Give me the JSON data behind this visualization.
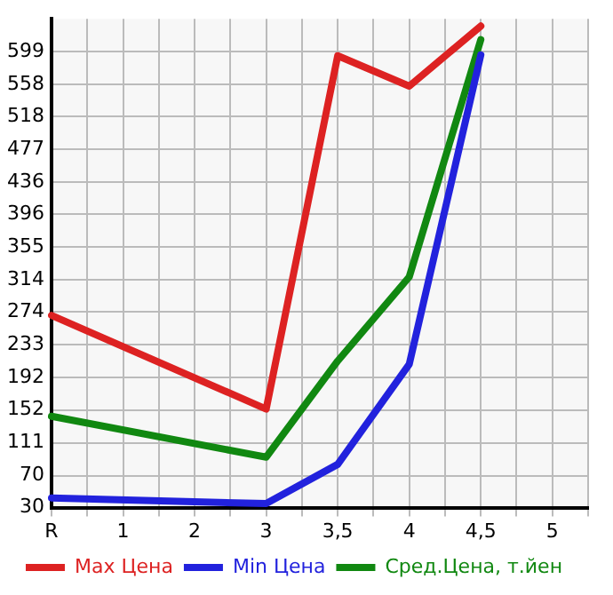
{
  "chart_data": {
    "type": "line",
    "categories": [
      "R",
      null,
      "1",
      null,
      "2",
      null,
      "3",
      null,
      "3,5",
      null,
      "4",
      null,
      "4,5",
      null,
      "5",
      null
    ],
    "series": [
      {
        "name": "Max Цена",
        "color": "#dd2222",
        "values": [
          270,
          null,
          null,
          null,
          null,
          null,
          153,
          null,
          594,
          null,
          556,
          null,
          631,
          null,
          null,
          null
        ]
      },
      {
        "name": "Min Цена",
        "color": "#2222dd",
        "values": [
          42,
          null,
          null,
          null,
          null,
          null,
          35,
          null,
          84,
          null,
          209,
          null,
          595,
          null,
          null,
          null
        ]
      },
      {
        "name": "Сред.Цена, т.йен",
        "color": "#118811",
        "values": [
          144,
          null,
          null,
          null,
          null,
          null,
          93,
          null,
          213,
          null,
          318,
          null,
          614,
          null,
          null,
          null
        ]
      }
    ],
    "ylim": [
      30,
      640
    ],
    "yticks": [
      30,
      70,
      111,
      152,
      192,
      233,
      274,
      314,
      355,
      396,
      436,
      477,
      518,
      558,
      599
    ],
    "grid": true,
    "legend": "bottom",
    "marker": "none",
    "line_style": "solid"
  }
}
